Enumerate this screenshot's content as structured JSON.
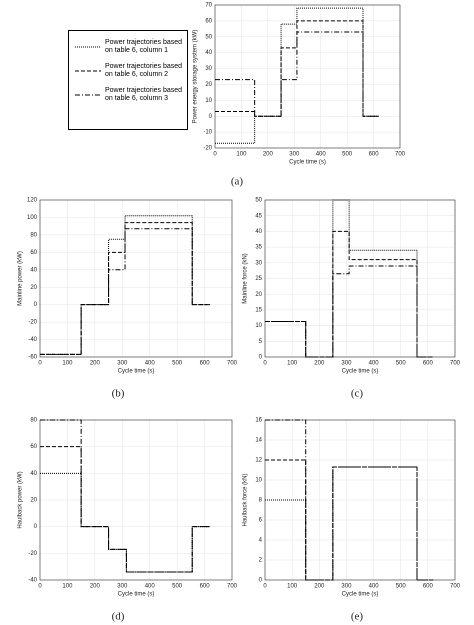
{
  "chart_data": [
    {
      "type": "line",
      "xlabel": "Cycle time (s)",
      "ylabel": "Power energy storage system (kW)",
      "label": "(a)",
      "x": [
        0,
        150,
        150,
        250,
        250,
        310,
        310,
        560,
        560,
        620
      ],
      "xlim": [
        0,
        700
      ],
      "xticks": [
        0,
        100,
        200,
        300,
        400,
        500,
        600,
        700
      ],
      "ylim": [
        -20,
        70
      ],
      "yticks": [
        -20,
        -10,
        0,
        10,
        20,
        30,
        40,
        50,
        60,
        70
      ],
      "grid": true,
      "series": [
        {
          "name": "Power trajectories based on table 6, column 1",
          "color": "#000000",
          "dash": "dotted",
          "values": [
            -17,
            -17,
            0,
            0,
            58,
            58,
            68,
            68,
            0,
            0
          ]
        },
        {
          "name": "Power trajectories based on table 6, column 2",
          "color": "#000000",
          "dash": "dashed",
          "values": [
            3,
            3,
            0,
            0,
            43,
            43,
            60,
            60,
            0,
            0
          ]
        },
        {
          "name": "Power trajectories based on table 6, column 3",
          "color": "#000000",
          "dash": "dashdot",
          "values": [
            23,
            23,
            0,
            0,
            23,
            23,
            53,
            53,
            0,
            0
          ]
        }
      ]
    },
    {
      "type": "line",
      "xlabel": "Cycle time (s)",
      "ylabel": "Mainline power (kW)",
      "label": "(b)",
      "x": [
        0,
        150,
        150,
        250,
        250,
        310,
        310,
        555,
        555,
        620
      ],
      "xlim": [
        0,
        700
      ],
      "xticks": [
        0,
        100,
        200,
        300,
        400,
        500,
        600,
        700
      ],
      "ylim": [
        -60,
        120
      ],
      "yticks": [
        -60,
        -40,
        -20,
        0,
        20,
        40,
        60,
        80,
        100,
        120
      ],
      "grid": true,
      "series": [
        {
          "color": "#000000",
          "dash": "dotted",
          "values": [
            -57,
            -57,
            0,
            0,
            75,
            75,
            102,
            102,
            0,
            0
          ]
        },
        {
          "color": "#000000",
          "dash": "dashed",
          "values": [
            -57,
            -57,
            0,
            0,
            60,
            60,
            94,
            94,
            0,
            0
          ]
        },
        {
          "color": "#000000",
          "dash": "dashdot",
          "values": [
            -57,
            -57,
            0,
            0,
            40,
            40,
            87,
            87,
            0,
            0
          ]
        }
      ]
    },
    {
      "type": "line",
      "xlabel": "Cycle time (s)",
      "ylabel": "Mainline force (kN)",
      "label": "(c)",
      "x": [
        0,
        150,
        150,
        250,
        250,
        310,
        310,
        560,
        560,
        620
      ],
      "xlim": [
        0,
        700
      ],
      "xticks": [
        0,
        100,
        200,
        300,
        400,
        500,
        600,
        700
      ],
      "ylim": [
        0,
        50
      ],
      "yticks": [
        0,
        5,
        10,
        15,
        20,
        25,
        30,
        35,
        40,
        45,
        50
      ],
      "grid": true,
      "series": [
        {
          "color": "#000000",
          "dash": "dotted",
          "values": [
            11.3,
            11.3,
            0,
            0,
            50,
            50,
            34,
            34,
            0,
            0
          ]
        },
        {
          "color": "#000000",
          "dash": "dashed",
          "values": [
            11.3,
            11.3,
            0,
            0,
            40,
            40,
            31,
            31,
            0,
            0
          ]
        },
        {
          "color": "#000000",
          "dash": "dashdot",
          "values": [
            11.3,
            11.3,
            0,
            0,
            26.5,
            26.5,
            29,
            29,
            0,
            0
          ]
        }
      ]
    },
    {
      "type": "line",
      "xlabel": "Cycle time (s)",
      "ylabel": "Haulback power (kW)",
      "label": "(d)",
      "x": [
        0,
        150,
        150,
        250,
        250,
        315,
        315,
        555,
        555,
        620
      ],
      "xlim": [
        0,
        700
      ],
      "xticks": [
        0,
        100,
        200,
        300,
        400,
        500,
        600,
        700
      ],
      "ylim": [
        -40,
        80
      ],
      "yticks": [
        -40,
        -20,
        0,
        20,
        40,
        60,
        80
      ],
      "grid": true,
      "series": [
        {
          "color": "#000000",
          "dash": "dotted",
          "values": [
            40,
            40,
            0,
            0,
            -17,
            -17,
            -34,
            -34,
            0,
            0
          ]
        },
        {
          "color": "#000000",
          "dash": "dashed",
          "values": [
            60,
            60,
            0,
            0,
            -17,
            -17,
            -34,
            -34,
            0,
            0
          ]
        },
        {
          "color": "#000000",
          "dash": "dashdot",
          "values": [
            80,
            80,
            0,
            0,
            -17,
            -17,
            -34,
            -34,
            0,
            0
          ]
        }
      ]
    },
    {
      "type": "line",
      "xlabel": "Cycle time (s)",
      "ylabel": "Haulback force (kN)",
      "label": "(e)",
      "x": [
        0,
        150,
        150,
        250,
        250,
        560,
        560,
        620
      ],
      "xlim": [
        0,
        700
      ],
      "xticks": [
        0,
        100,
        200,
        300,
        400,
        500,
        600,
        700
      ],
      "ylim": [
        0,
        16
      ],
      "yticks": [
        0,
        2,
        4,
        6,
        8,
        10,
        12,
        14,
        16
      ],
      "grid": true,
      "series": [
        {
          "color": "#000000",
          "dash": "dotted",
          "values": [
            8,
            8,
            0,
            0,
            11.3,
            11.3,
            0,
            0
          ]
        },
        {
          "color": "#000000",
          "dash": "dashed",
          "values": [
            12,
            12,
            0,
            0,
            11.3,
            11.3,
            0,
            0
          ]
        },
        {
          "color": "#000000",
          "dash": "dashdot",
          "values": [
            16,
            16,
            0,
            0,
            11.3,
            11.3,
            0,
            0
          ]
        }
      ]
    }
  ]
}
